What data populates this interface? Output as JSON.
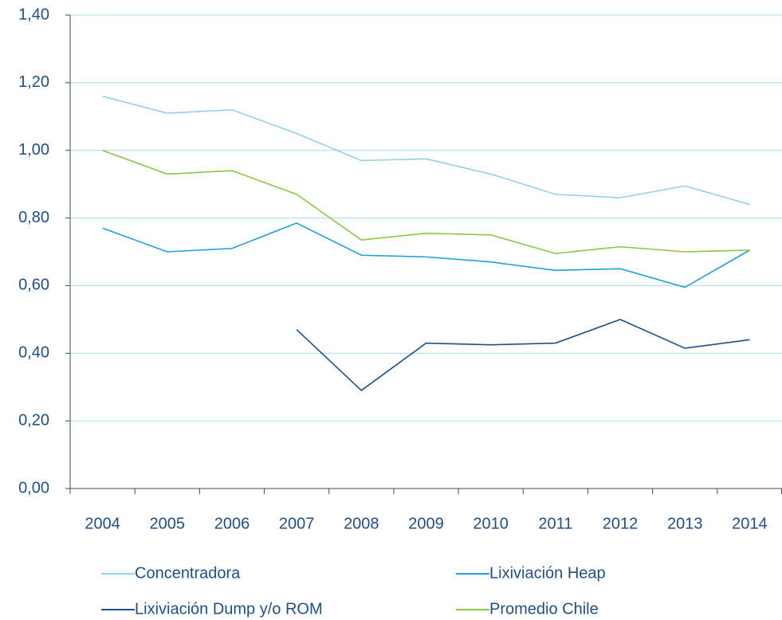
{
  "chart_data": {
    "type": "line",
    "categories": [
      "2004",
      "2005",
      "2006",
      "2007",
      "2008",
      "2009",
      "2010",
      "2011",
      "2012",
      "2013",
      "2014"
    ],
    "series": [
      {
        "name": "Concentradora",
        "color": "#92d0ea",
        "values": [
          1.16,
          1.11,
          1.12,
          1.05,
          0.97,
          0.975,
          0.93,
          0.87,
          0.86,
          0.895,
          0.84
        ]
      },
      {
        "name": "Lixiviación Heap",
        "color": "#1fa0d8",
        "values": [
          0.77,
          0.7,
          0.71,
          0.785,
          0.69,
          0.685,
          0.67,
          0.645,
          0.65,
          0.595,
          0.705
        ]
      },
      {
        "name": "Lixiviación Dump y/o ROM",
        "color": "#1b4f8f",
        "values": [
          null,
          null,
          null,
          0.47,
          0.29,
          0.43,
          0.425,
          0.43,
          0.5,
          0.415,
          0.44
        ]
      },
      {
        "name": "Promedio Chile",
        "color": "#8dc63f",
        "values": [
          1.0,
          0.93,
          0.94,
          0.87,
          0.735,
          0.755,
          0.75,
          0.695,
          0.715,
          0.7,
          0.705
        ]
      }
    ],
    "ylim": [
      0,
      1.4
    ],
    "yticks": [
      {
        "value": 0,
        "label": "0,00"
      },
      {
        "value": 0.2,
        "label": "0,20"
      },
      {
        "value": 0.4,
        "label": "0,40"
      },
      {
        "value": 0.6,
        "label": "0,60"
      },
      {
        "value": 0.8,
        "label": "0,80"
      },
      {
        "value": 1.0,
        "label": "1,00"
      },
      {
        "value": 1.2,
        "label": "1,20"
      },
      {
        "value": 1.4,
        "label": "1,40"
      }
    ],
    "grid": true,
    "legend": "bottom"
  }
}
